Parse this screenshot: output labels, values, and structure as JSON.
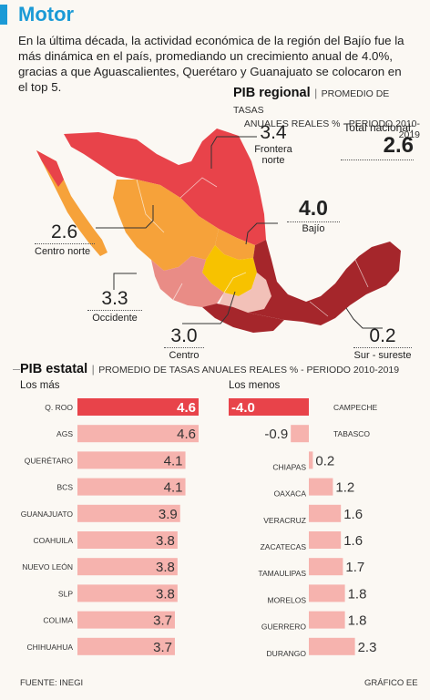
{
  "header": {
    "title": "Motor",
    "accent": "#1b9ad6"
  },
  "intro": "En la última década, la actividad económica de la región del Bajío fue la más dinámica en el país, promediando un crecimiento anual de 4.0%, gracias a que Aguascalientes, Querétaro y Guanajuato se colocaron en el top 5.",
  "regional": {
    "title": "PIB regional",
    "subtitle1": "PROMEDIO DE TASAS",
    "subtitle2": "ANUALES REALES % - PERIODO 2010-2019",
    "national_label": "Total nacional:",
    "national_value": "2.6",
    "regions": {
      "frontera_norte": {
        "value": "3.4",
        "label1": "Frontera",
        "label2": "norte",
        "color": "#e8434a"
      },
      "bajio": {
        "value": "4.0",
        "label": "Bajío",
        "color": "#f7c200"
      },
      "centro_norte": {
        "value": "2.6",
        "label": "Centro norte",
        "color": "#f6a23a"
      },
      "occidente": {
        "value": "3.3",
        "label": "Occidente",
        "color": "#e98c86"
      },
      "centro": {
        "value": "3.0",
        "label": "Centro",
        "color": "#f2c1b8"
      },
      "sur_sureste": {
        "value": "0.2",
        "label": "Sur - sureste",
        "color": "#a5262b"
      }
    }
  },
  "estatal": {
    "title": "PIB estatal",
    "subtitle": "PROMEDIO DE TASAS ANUALES REALES % - PERIODO 2010-2019",
    "left_label": "Los más",
    "right_label": "Los menos",
    "source": "FUENTE: INEGI",
    "credit": "GRÁFICO EE"
  },
  "chart_data": [
    {
      "type": "bar",
      "title": "Los más",
      "categories": [
        "Q. ROO",
        "AGS",
        "QUERÉTARO",
        "BCS",
        "GUANAJUATO",
        "COAHUILA",
        "NUEVO LEÓN",
        "SLP",
        "COLIMA",
        "CHIHUAHUA"
      ],
      "values": [
        4.6,
        4.6,
        4.1,
        4.1,
        3.9,
        3.8,
        3.8,
        3.8,
        3.7,
        3.7
      ],
      "value_labels": [
        "4.6",
        "4.6",
        "4.1",
        "4.1",
        "3.9",
        "3.8",
        "3.8",
        "3.8",
        "3.7",
        "3.7"
      ],
      "highlight_index": 0,
      "colors": {
        "highlight": "#e8434a",
        "bar": "#f6b3ae"
      }
    },
    {
      "type": "bar",
      "title": "Los menos",
      "categories": [
        "CAMPECHE",
        "TABASCO",
        "CHIAPAS",
        "OAXACA",
        "VERACRUZ",
        "ZACATECAS",
        "TAMAULIPAS",
        "MORELOS",
        "GUERRERO",
        "DURANGO"
      ],
      "values": [
        -4.0,
        -0.9,
        0.2,
        1.2,
        1.6,
        1.6,
        1.7,
        1.8,
        1.8,
        2.3
      ],
      "value_labels": [
        "-4.0",
        "-0.9",
        "0.2",
        "1.2",
        "1.6",
        "1.6",
        "1.7",
        "1.8",
        "1.8",
        "2.3"
      ],
      "highlight_index": 0,
      "colors": {
        "highlight": "#e8434a",
        "bar": "#f6b3ae"
      }
    }
  ]
}
